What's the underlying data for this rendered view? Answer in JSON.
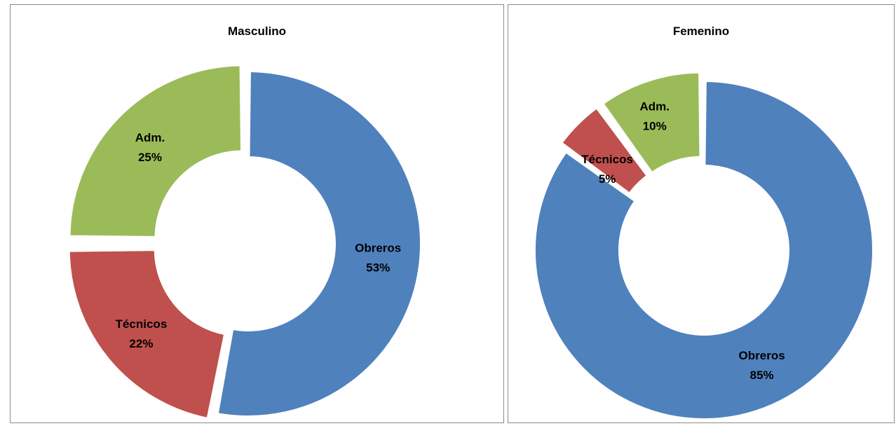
{
  "chart_data": [
    {
      "type": "pie",
      "variant": "donut",
      "title": "Masculino",
      "labels": [
        "Obreros",
        "Técnicos",
        "Adm."
      ],
      "values": [
        53,
        22,
        25
      ],
      "value_labels": [
        "53%",
        "22%",
        "25%"
      ],
      "colors": [
        "#4F81BD",
        "#C0504D",
        "#9BBB59"
      ],
      "legend": "none"
    },
    {
      "type": "pie",
      "variant": "donut",
      "title": "Femenino",
      "labels": [
        "Obreros",
        "Técnicos",
        "Adm."
      ],
      "values": [
        85,
        5,
        10
      ],
      "value_labels": [
        "85%",
        "5%",
        "10%"
      ],
      "colors": [
        "#4F81BD",
        "#C0504D",
        "#9BBB59"
      ],
      "legend": "none"
    }
  ]
}
